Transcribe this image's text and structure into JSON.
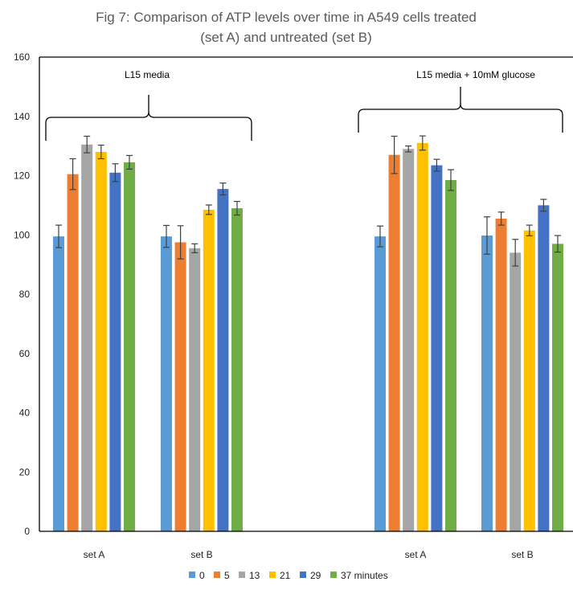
{
  "chart_data": {
    "type": "bar",
    "title_lines": [
      "Fig 7: Comparison of ATP levels over time in A549 cells treated",
      "(set A) and untreated (set B)"
    ],
    "xlabel": "",
    "ylabel": "",
    "ylim": [
      0,
      160
    ],
    "yticks": [
      0,
      20,
      40,
      60,
      80,
      100,
      120,
      140,
      160
    ],
    "grid": false,
    "legend_position": "bottom",
    "categories": [
      "set A",
      "set B",
      "set A",
      "set B"
    ],
    "groups": [
      "L15 media",
      "L15 media + 10mM glucose"
    ],
    "series": [
      {
        "name": "0",
        "color": "#5B9BD5",
        "values": [
          99.5,
          99.5,
          99.5,
          99.8
        ],
        "errors": [
          3.8,
          3.7,
          3.5,
          6.3
        ]
      },
      {
        "name": "5",
        "color": "#ED7D31",
        "values": [
          120.5,
          97.5,
          127,
          105.5
        ],
        "errors": [
          5.2,
          5.6,
          6.3,
          2.2
        ]
      },
      {
        "name": "13",
        "color": "#A5A5A5",
        "values": [
          130.5,
          95.5,
          129,
          94
        ],
        "errors": [
          2.8,
          1.5,
          1.0,
          4.5
        ]
      },
      {
        "name": "21",
        "color": "#FFC000",
        "values": [
          128,
          108.5,
          131,
          101.5
        ],
        "errors": [
          2.3,
          1.6,
          2.4,
          1.8
        ]
      },
      {
        "name": "29",
        "color": "#4472C4",
        "values": [
          121,
          115.5,
          123.5,
          110
        ],
        "errors": [
          3.0,
          2.0,
          2.0,
          2.0
        ]
      },
      {
        "name": "37 minutes",
        "color": "#70AD47",
        "values": [
          124.5,
          109,
          118.5,
          97
        ],
        "errors": [
          2.3,
          2.3,
          3.5,
          2.8
        ]
      }
    ]
  }
}
